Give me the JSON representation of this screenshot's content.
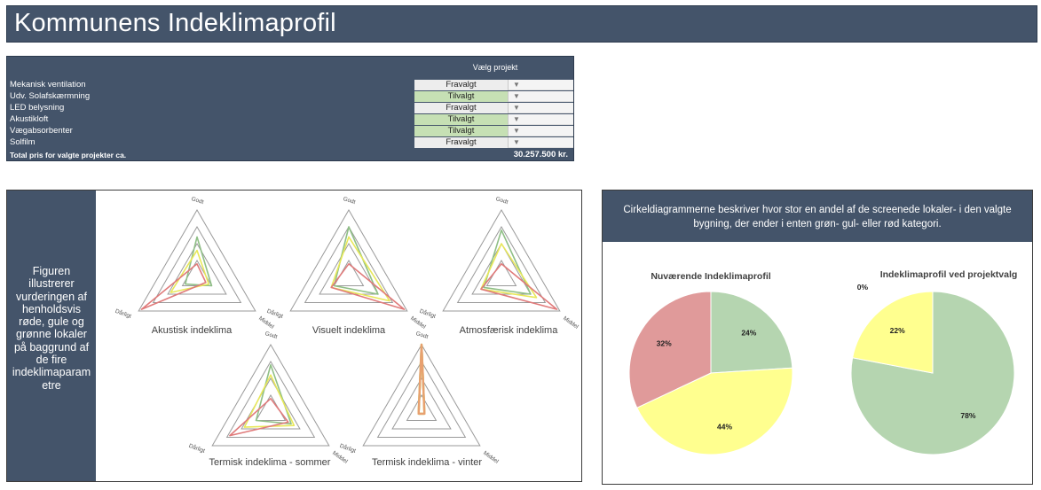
{
  "header": {
    "title": "Kommunens Indeklimaprofil"
  },
  "projects": {
    "choose_header": "Vælg projekt",
    "rows": [
      {
        "label": "Mekanisk ventilation",
        "value": "Fravalgt",
        "state": "fravalgt"
      },
      {
        "label": "Udv. Solafskærmning",
        "value": "Tilvalgt",
        "state": "tilvalgt"
      },
      {
        "label": "LED belysning",
        "value": "Fravalgt",
        "state": "fravalgt"
      },
      {
        "label": "Akustikloft",
        "value": "Tilvalgt",
        "state": "tilvalgt"
      },
      {
        "label": "Vægabsorbenter",
        "value": "Tilvalgt",
        "state": "tilvalgt"
      },
      {
        "label": "Solfilm",
        "value": "Fravalgt",
        "state": "fravalgt"
      }
    ],
    "total_label": "Total pris for valgte projekter ca.",
    "total_value": "30.257.500 kr."
  },
  "radar_panel": {
    "description": "Figuren illustrerer vurderingen af henholdsvis røde, gule og grønne lokaler på baggrund af de fire indeklimaparam etre",
    "axis_labels": {
      "top": "Godt",
      "left": "Dårligt",
      "right": "Middel"
    },
    "charts": [
      {
        "title": "Akustisk indeklima",
        "green": [
          0.6,
          0.2,
          0.25
        ],
        "yellow": [
          0.4,
          0.45,
          0.2
        ],
        "red": [
          0.2,
          0.95,
          0.15
        ]
      },
      {
        "title": "Visuelt indeklima",
        "green": [
          0.75,
          0.25,
          0.5
        ],
        "yellow": [
          0.6,
          0.3,
          0.7
        ],
        "red": [
          0.2,
          0.3,
          0.95
        ]
      },
      {
        "title": "Atmosfærisk indeklima",
        "green": [
          0.7,
          0.3,
          0.5
        ],
        "yellow": [
          0.5,
          0.35,
          0.6
        ],
        "red": [
          0.2,
          0.35,
          0.95
        ]
      },
      {
        "title": "Termisk indeklima - sommer",
        "green": [
          0.7,
          0.25,
          0.35
        ],
        "yellow": [
          0.55,
          0.45,
          0.4
        ],
        "red": [
          0.2,
          0.7,
          0.3
        ]
      },
      {
        "title": "Termisk indeklima - vinter",
        "green": [
          1.0,
          0.05,
          0.05
        ],
        "yellow": [
          1.0,
          0.05,
          0.05
        ],
        "red": [
          1.0,
          0.05,
          0.05
        ]
      }
    ]
  },
  "pie_panel": {
    "description": "Cirkeldiagrammerne beskriver hvor stor en andel af de screenede lokaler- i den valgte bygning, der ender i enten grøn- gul- eller rød kategori."
  },
  "chart_data": [
    {
      "type": "pie",
      "title": "Nuværende Indeklimaprofil",
      "slices": [
        {
          "label": "24%",
          "value": 24,
          "color": "#b5d5b0"
        },
        {
          "label": "44%",
          "value": 44,
          "color": "#ffff8f"
        },
        {
          "label": "32%",
          "value": 32,
          "color": "#e09a9a"
        }
      ]
    },
    {
      "type": "pie",
      "title": "Indeklimaprofil ved projektvalg",
      "slices": [
        {
          "label": "78%",
          "value": 78,
          "color": "#b5d5b0"
        },
        {
          "label": "22%",
          "value": 22,
          "color": "#ffff8f"
        },
        {
          "label": "0%",
          "value": 0,
          "color": "#e09a9a"
        }
      ]
    }
  ],
  "colors": {
    "header_bg": "#44546a",
    "green": "#b5d5b0",
    "yellow": "#ffff8f",
    "red": "#e09a9a",
    "radar_green": "#8fbf86",
    "radar_yellow": "#e8e85a",
    "radar_red": "#e07b7b",
    "radar_orange": "#e8a070"
  }
}
